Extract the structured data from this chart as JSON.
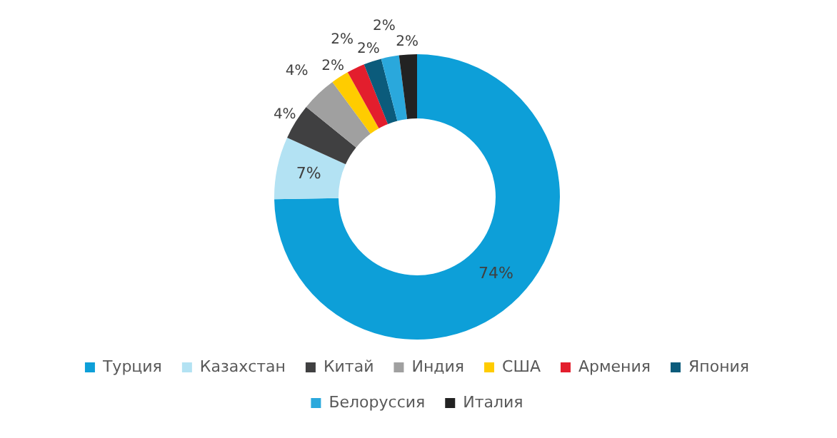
{
  "chart_data": {
    "type": "donut",
    "categories": [
      "Турция",
      "Казахстан",
      "Китай",
      "Индия",
      "США",
      "Армения",
      "Япония",
      "Белоруссия",
      "Италия"
    ],
    "values": [
      74,
      7,
      4,
      4,
      2,
      2,
      2,
      2,
      2
    ],
    "colors": [
      "#0d9fd8",
      "#b3e2f3",
      "#404041",
      "#a0a0a0",
      "#ffcc00",
      "#e31e2d",
      "#0b5b7b",
      "#2aa8dc",
      "#222222"
    ],
    "value_labels": [
      "74%",
      "7%",
      "4%",
      "4%",
      "2%",
      "2%",
      "2%",
      "2%",
      "2%"
    ],
    "legend": "bottom"
  }
}
